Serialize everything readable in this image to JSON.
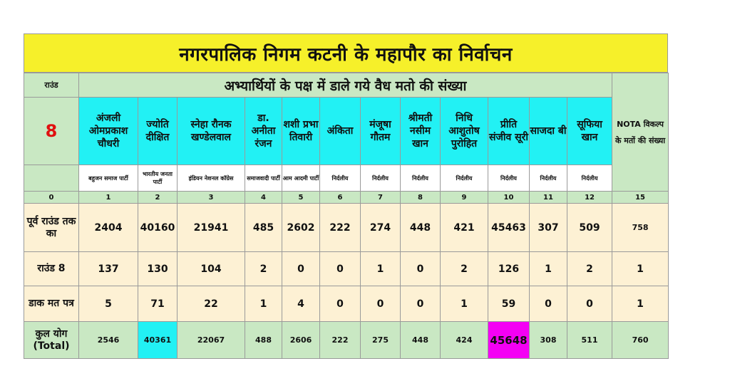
{
  "title": "नगरपालिक निगम कटनी के महापौर का निर्वाचन",
  "header": {
    "round_label": "राउंड",
    "votes_heading": "अभ्यार्थियों के पक्ष में डाले गये वैध मतो की संख्या",
    "nota_heading": "NOTA विकल्प के मतों की संख्या",
    "round_number": "8",
    "zero": "0"
  },
  "candidates": [
    {
      "name": "अंजली ओमप्रकाश चौधरी",
      "party": "बहुजन समाज पार्टी",
      "index": "1"
    },
    {
      "name": "ज्योति दीक्षित",
      "party": "भारतीय जनता पार्टी",
      "index": "2"
    },
    {
      "name": "स्नेहा रौनक खण्डेलवाल",
      "party": "इंडियन नेशनल कॉग्रेस",
      "index": "3"
    },
    {
      "name": "डा. अनीता रंजन",
      "party": "समाजवादी पार्टी",
      "index": "4"
    },
    {
      "name": "शशी प्रभा तिवारी",
      "party": "आम आदमी पार्टी",
      "index": "5"
    },
    {
      "name": "अंकिता",
      "party": "निर्दलीय",
      "index": "6"
    },
    {
      "name": "मंजूषा गौतम",
      "party": "निर्दलीय",
      "index": "7"
    },
    {
      "name": "श्रीमती नसीम खान",
      "party": "निर्दलीय",
      "index": "8"
    },
    {
      "name": "निधि आशुतोष पुरोहित",
      "party": "निर्दलीय",
      "index": "9"
    },
    {
      "name": "प्रीति संजीव सूरी",
      "party": "निर्दलीय",
      "index": "10"
    },
    {
      "name": "साजदा बी",
      "party": "निर्दलीय",
      "index": "11"
    },
    {
      "name": "सूफिया खान",
      "party": "निर्दलीय",
      "index": "12"
    }
  ],
  "nota_index": "15",
  "rows": [
    {
      "label": "पूर्व राउंड तक का",
      "values": [
        "2404",
        "40160",
        "21941",
        "485",
        "2602",
        "222",
        "274",
        "448",
        "421",
        "45463",
        "307",
        "509"
      ],
      "nota": "758"
    },
    {
      "label": "राउंड 8",
      "values": [
        "137",
        "130",
        "104",
        "2",
        "0",
        "0",
        "1",
        "0",
        "2",
        "126",
        "1",
        "2"
      ],
      "nota": "1"
    },
    {
      "label": "डाक मत पत्र",
      "values": [
        "5",
        "71",
        "22",
        "1",
        "4",
        "0",
        "0",
        "0",
        "1",
        "59",
        "0",
        "0"
      ],
      "nota": "1"
    }
  ],
  "total": {
    "label": "कुल योग",
    "label_en": "(Total)",
    "values": [
      "2546",
      "40361",
      "22067",
      "488",
      "2606",
      "222",
      "275",
      "448",
      "424",
      "45648",
      "308",
      "511"
    ],
    "nota": "760"
  },
  "colors": {
    "title_bg": "#f6f02a",
    "header_bg": "#c9e8c3",
    "candidate_bg": "#22f1f4",
    "data_bg": "#fdf1d4",
    "highlight_winner": "#f400f4",
    "round_number": "#e01010"
  }
}
